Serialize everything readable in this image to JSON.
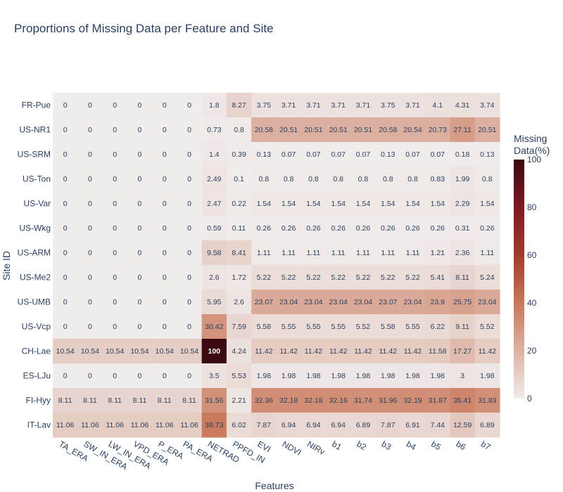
{
  "chart_data": {
    "type": "heatmap",
    "title": "Proportions of Missing Data per Feature and Site",
    "xlabel": "Features",
    "ylabel": "Site ID",
    "colorbar": {
      "title_lines": [
        "Missing",
        "Data(%)"
      ],
      "range": [
        0,
        100
      ],
      "ticks": [
        0,
        20,
        40,
        60,
        80,
        100
      ],
      "colorscale": [
        "#f0eceb",
        "#ddb2a3",
        "#c97758",
        "#a13c2a",
        "#7e1a22",
        "#3c0911"
      ]
    },
    "x": [
      "TA_ERA",
      "SW_IN_ERA",
      "LW_IN_ERA",
      "VPD_ERA",
      "P_ERA",
      "PA_ERA",
      "NETRAD",
      "PPFD_IN",
      "EVI",
      "NDVI",
      "NIRv",
      "b1",
      "b2",
      "b3",
      "b4",
      "b5",
      "b6",
      "b7"
    ],
    "y": [
      "FR-Pue",
      "US-NR1",
      "US-SRM",
      "US-Ton",
      "US-Var",
      "US-Wkg",
      "US-ARM",
      "US-Me2",
      "US-UMB",
      "US-Vcp",
      "CH-Lae",
      "ES-LJu",
      "FI-Hyy",
      "IT-Lav"
    ],
    "z": [
      [
        0,
        0,
        0,
        0,
        0,
        0,
        1.8,
        8.27,
        3.75,
        3.71,
        3.71,
        3.71,
        3.71,
        3.75,
        3.71,
        4.1,
        4.31,
        3.74
      ],
      [
        0,
        0,
        0,
        0,
        0,
        0,
        0.73,
        0.8,
        20.58,
        20.51,
        20.51,
        20.51,
        20.51,
        20.58,
        20.54,
        20.73,
        27.11,
        20.51
      ],
      [
        0,
        0,
        0,
        0,
        0,
        0,
        1.4,
        0.39,
        0.13,
        0.07,
        0.07,
        0.07,
        0.07,
        0.13,
        0.07,
        0.07,
        0.18,
        0.13
      ],
      [
        0,
        0,
        0,
        0,
        0,
        0,
        2.49,
        0.1,
        0.8,
        0.8,
        0.8,
        0.8,
        0.8,
        0.8,
        0.8,
        0.83,
        1.99,
        0.8
      ],
      [
        0,
        0,
        0,
        0,
        0,
        0,
        2.47,
        0.22,
        1.54,
        1.54,
        1.54,
        1.54,
        1.54,
        1.54,
        1.54,
        1.54,
        2.29,
        1.54
      ],
      [
        0,
        0,
        0,
        0,
        0,
        0,
        0.59,
        0.11,
        0.26,
        0.26,
        0.26,
        0.26,
        0.26,
        0.26,
        0.26,
        0.26,
        0.31,
        0.26
      ],
      [
        0,
        0,
        0,
        0,
        0,
        0,
        9.58,
        8.41,
        1.11,
        1.11,
        1.11,
        1.11,
        1.11,
        1.11,
        1.11,
        1.21,
        2.36,
        1.11
      ],
      [
        0,
        0,
        0,
        0,
        0,
        0,
        2.6,
        1.72,
        5.22,
        5.22,
        5.22,
        5.22,
        5.22,
        5.22,
        5.22,
        5.41,
        8.11,
        5.24
      ],
      [
        0,
        0,
        0,
        0,
        0,
        0,
        5.95,
        2.6,
        23.07,
        23.04,
        23.04,
        23.04,
        23.04,
        23.07,
        23.04,
        23.9,
        25.75,
        23.04
      ],
      [
        0,
        0,
        0,
        0,
        0,
        0,
        30.42,
        7.59,
        5.58,
        5.55,
        5.55,
        5.55,
        5.52,
        5.58,
        5.55,
        6.22,
        9.11,
        5.52
      ],
      [
        10.54,
        10.54,
        10.54,
        10.54,
        10.54,
        10.54,
        100,
        4.24,
        11.42,
        11.42,
        11.42,
        11.42,
        11.42,
        11.42,
        11.42,
        11.58,
        17.27,
        11.42
      ],
      [
        0,
        0,
        0,
        0,
        0,
        0,
        3.5,
        5.53,
        1.98,
        1.98,
        1.98,
        1.98,
        1.98,
        1.98,
        1.98,
        1.98,
        3,
        1.98
      ],
      [
        8.11,
        8.11,
        8.11,
        8.11,
        8.11,
        8.11,
        31.56,
        2.21,
        32.36,
        32.18,
        32.18,
        32.16,
        31.74,
        31.96,
        32.19,
        31.87,
        35.41,
        31.83
      ],
      [
        11.06,
        11.06,
        11.06,
        11.06,
        11.06,
        11.06,
        38.73,
        6.02,
        7.87,
        6.94,
        6.94,
        6.94,
        6.89,
        7.87,
        6.91,
        7.44,
        12.59,
        6.89
      ]
    ]
  }
}
